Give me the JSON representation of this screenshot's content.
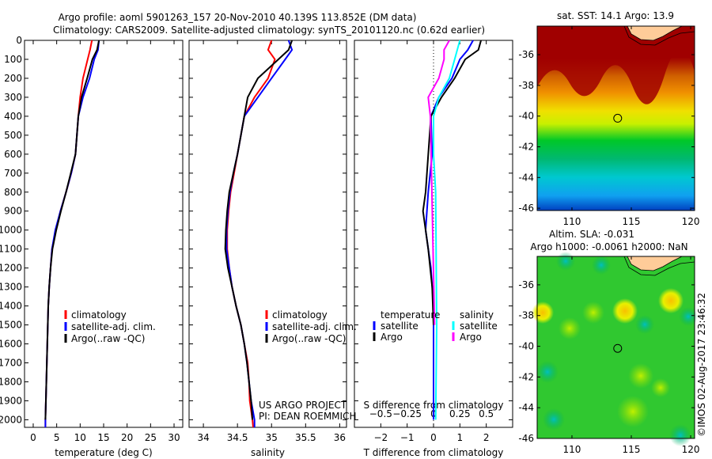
{
  "title_line1": "Argo profile: aoml 5901263_157 20-Nov-2010 40.139S 113.852E (DM data)",
  "title_line2": "Climatology: CARS2009. Satellite-adjusted climatology: synTS_20101120.nc (0.62d earlier)",
  "colors": {
    "climatology": "#ff0000",
    "satellite": "#0000ff",
    "argo": "#000000",
    "sal_satellite": "#00ffff",
    "sal_argo": "#ff00ff",
    "land": "#ffcc99"
  },
  "chart_data": [
    {
      "type": "line",
      "xlabel": "temperature (deg C)",
      "ylabel": "",
      "xlim": [
        -1.85,
        31.85
      ],
      "ylim": [
        2040,
        0
      ],
      "xticks": [
        0,
        5,
        10,
        15,
        20,
        25,
        30
      ],
      "yticks": [
        0,
        100,
        200,
        300,
        400,
        500,
        600,
        700,
        800,
        900,
        1000,
        1100,
        1200,
        1300,
        1400,
        1500,
        1600,
        1700,
        1800,
        1900,
        2000
      ],
      "legend": [
        "climatology",
        "satellite-adj. clim.",
        "Argo(..raw -QC)"
      ],
      "legend_position": "lower-center",
      "series": [
        {
          "name": "climatology",
          "color": "#ff0000",
          "depth": [
            0,
            50,
            100,
            200,
            300,
            400,
            500,
            600,
            700,
            800,
            900,
            1000,
            1100,
            1200,
            1300,
            1400,
            1600,
            1800,
            2000,
            2040
          ],
          "values": [
            12.5,
            12.1,
            11.6,
            10.6,
            10.0,
            9.6,
            9.3,
            9.0,
            8.1,
            7.0,
            5.8,
            4.8,
            4.0,
            3.7,
            3.4,
            3.2,
            3.0,
            2.8,
            2.6,
            2.6
          ]
        },
        {
          "name": "satellite-adj. clim.",
          "color": "#0000ff",
          "depth": [
            0,
            50,
            100,
            200,
            300,
            400,
            500,
            600,
            700,
            800,
            900,
            1000,
            1100,
            1200,
            1300,
            1400,
            1600,
            1800,
            2000,
            2040
          ],
          "values": [
            14.0,
            13.8,
            13.0,
            12.0,
            10.6,
            9.6,
            9.3,
            9.0,
            8.1,
            7.0,
            5.8,
            4.7,
            4.0,
            3.7,
            3.4,
            3.2,
            3.0,
            2.8,
            2.6,
            2.6
          ]
        },
        {
          "name": "Argo(..raw -QC)",
          "color": "#000000",
          "depth": [
            0,
            50,
            100,
            200,
            300,
            400,
            500,
            600,
            700,
            800,
            900,
            1000,
            1100,
            1200,
            1300,
            1400,
            1600,
            1800,
            2000
          ],
          "values": [
            14.0,
            13.6,
            12.6,
            11.5,
            10.3,
            9.6,
            9.3,
            9.0,
            8.0,
            7.0,
            5.9,
            4.9,
            4.1,
            3.7,
            3.4,
            3.2,
            3.0,
            2.8,
            2.6
          ]
        }
      ]
    },
    {
      "type": "line",
      "xlabel": "salinity",
      "xlim": [
        33.79,
        36.1
      ],
      "ylim": [
        2040,
        0
      ],
      "xticks": [
        34,
        34.5,
        35,
        35.5,
        36
      ],
      "legend": [
        "climatology",
        "satellite-adj. clim.",
        "Argo(..raw -QC)"
      ],
      "annotations": [
        "US ARGO PROJECT",
        "PI: DEAN ROEMMICH"
      ],
      "series": [
        {
          "name": "climatology",
          "color": "#ff0000",
          "depth": [
            0,
            50,
            100,
            200,
            300,
            400,
            500,
            600,
            700,
            800,
            900,
            1000,
            1100,
            1200,
            1300,
            1400,
            1500,
            1600,
            1700,
            1800,
            1900,
            2000,
            2040
          ],
          "values": [
            35.0,
            34.95,
            35.05,
            34.95,
            34.75,
            34.6,
            34.55,
            34.5,
            34.45,
            34.4,
            34.37,
            34.35,
            34.35,
            34.38,
            34.42,
            34.48,
            34.55,
            34.6,
            34.65,
            34.67,
            34.68,
            34.72,
            34.73
          ]
        },
        {
          "name": "satellite-adj. clim.",
          "color": "#0000ff",
          "depth": [
            0,
            50,
            100,
            200,
            300,
            400,
            500,
            600,
            700,
            800,
            900,
            1000,
            1100,
            1200,
            1300,
            1400,
            1500,
            1600,
            1700,
            1800,
            1900,
            2000,
            2040
          ],
          "values": [
            35.25,
            35.3,
            35.2,
            35.0,
            34.8,
            34.6,
            34.55,
            34.5,
            34.44,
            34.39,
            34.36,
            34.34,
            34.34,
            34.38,
            34.42,
            34.48,
            34.55,
            34.6,
            34.64,
            34.67,
            34.7,
            34.75,
            34.75
          ]
        },
        {
          "name": "Argo(..raw -QC)",
          "color": "#000000",
          "depth": [
            0,
            50,
            100,
            200,
            300,
            400,
            500,
            600,
            700,
            800,
            900,
            1000,
            1100,
            1200,
            1300,
            1400,
            1500,
            1600,
            1700,
            1800,
            1900,
            2000
          ],
          "values": [
            35.3,
            35.25,
            35.1,
            34.8,
            34.65,
            34.6,
            34.55,
            34.5,
            34.44,
            34.38,
            34.35,
            34.33,
            34.32,
            34.36,
            34.42,
            34.48,
            34.55,
            34.6,
            34.64,
            34.67,
            34.7,
            34.72
          ]
        }
      ]
    },
    {
      "type": "line",
      "xlabel": "T difference from climatology",
      "xlabel2": "S difference from climatology",
      "xlim": [
        -3,
        3
      ],
      "ylim": [
        2040,
        0
      ],
      "xticks": [
        -2,
        -1,
        0,
        1,
        2
      ],
      "xticks2": [
        "-0.5",
        "-0.25",
        "0",
        "0.25",
        "0.5"
      ],
      "legend_headers": [
        "temperature",
        "salinity"
      ],
      "legend": [
        "satellite",
        "Argo",
        "satellite",
        "Argo"
      ],
      "series": [
        {
          "name": "T satellite",
          "color": "#0000ff",
          "depth": [
            0,
            50,
            100,
            200,
            300,
            400,
            600,
            800,
            1000,
            1200,
            1400,
            2000
          ],
          "values": [
            1.5,
            1.3,
            1.0,
            0.7,
            0.2,
            -0.1,
            -0.05,
            -0.2,
            -0.3,
            -0.1,
            0,
            0
          ]
        },
        {
          "name": "T Argo",
          "color": "#000000",
          "depth": [
            0,
            50,
            100,
            200,
            300,
            400,
            800,
            900,
            1000,
            1100,
            1300,
            1500
          ],
          "values": [
            1.8,
            1.7,
            1.2,
            0.8,
            0.3,
            -0.1,
            -0.3,
            -0.4,
            -0.3,
            -0.2,
            -0.05,
            0
          ]
        },
        {
          "name": "S satellite",
          "color": "#00ffff",
          "depth": [
            0,
            100,
            200,
            300,
            400,
            600,
            800,
            1500,
            2000
          ],
          "values": [
            0.25,
            0.2,
            0.15,
            0.05,
            0.0,
            0.0,
            0.02,
            0.03,
            0.02
          ]
        },
        {
          "name": "S Argo",
          "color": "#ff00ff",
          "depth": [
            0,
            50,
            100,
            200,
            300,
            400,
            1500
          ],
          "values": [
            0.15,
            0.1,
            0.1,
            0.05,
            -0.05,
            -0.03,
            0.01
          ]
        }
      ]
    }
  ],
  "maps": [
    {
      "title": "sat. SST: 14.1 Argo: 13.9",
      "lat_ticks": [
        "-36",
        "-38",
        "-40",
        "-42",
        "-44",
        "-46"
      ],
      "lon_ticks": [
        "110",
        "115",
        "120"
      ],
      "argo_lon": 113.852,
      "argo_lat": -40.139
    },
    {
      "title1": "Altim. SLA: -0.031",
      "title2": "Argo h1000: -0.0061 h2000: NaN",
      "lat_ticks": [
        "-36",
        "-38",
        "-40",
        "-42",
        "-44",
        "-46"
      ],
      "lon_ticks": [
        "110",
        "115",
        "120"
      ],
      "argo_lon": 113.852,
      "argo_lat": -40.139
    }
  ],
  "copyright": "©IMOS 02-Aug-2017 23:46:32"
}
